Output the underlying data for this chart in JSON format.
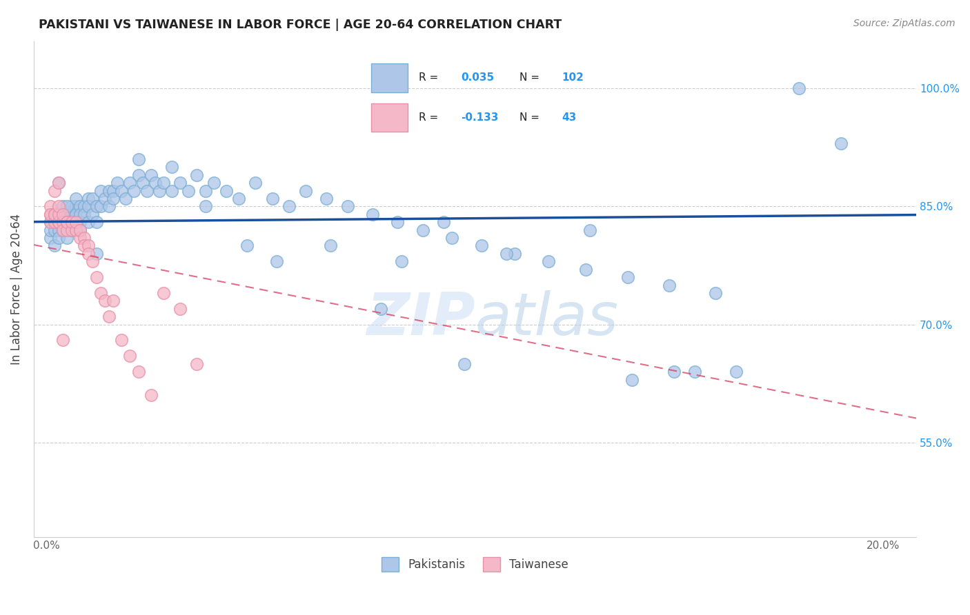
{
  "title": "PAKISTANI VS TAIWANESE IN LABOR FORCE | AGE 20-64 CORRELATION CHART",
  "source": "Source: ZipAtlas.com",
  "ylabel": "In Labor Force | Age 20-64",
  "xlim": [
    -0.003,
    0.208
  ],
  "ylim": [
    0.43,
    1.06
  ],
  "r_pakistani": 0.035,
  "n_pakistani": 102,
  "r_taiwanese": -0.133,
  "n_taiwanese": 43,
  "color_pakistani_fill": "#aec6e8",
  "color_pakistani_edge": "#7aaed4",
  "color_taiwanese_fill": "#f4b8c8",
  "color_taiwanese_edge": "#e890a8",
  "color_trendline_pakistani": "#1a4f9c",
  "color_trendline_taiwanese": "#d04060",
  "watermark_zip": "ZIP",
  "watermark_atlas": "atlas",
  "pakistani_x": [
    0.001,
    0.001,
    0.001,
    0.002,
    0.002,
    0.002,
    0.003,
    0.003,
    0.003,
    0.003,
    0.004,
    0.004,
    0.004,
    0.005,
    0.005,
    0.005,
    0.006,
    0.006,
    0.006,
    0.006,
    0.007,
    0.007,
    0.007,
    0.007,
    0.008,
    0.008,
    0.008,
    0.009,
    0.009,
    0.01,
    0.01,
    0.01,
    0.011,
    0.011,
    0.012,
    0.012,
    0.013,
    0.013,
    0.014,
    0.015,
    0.015,
    0.016,
    0.016,
    0.017,
    0.018,
    0.019,
    0.02,
    0.021,
    0.022,
    0.023,
    0.024,
    0.025,
    0.026,
    0.027,
    0.028,
    0.03,
    0.032,
    0.034,
    0.036,
    0.038,
    0.04,
    0.043,
    0.046,
    0.05,
    0.054,
    0.058,
    0.062,
    0.067,
    0.072,
    0.078,
    0.084,
    0.09,
    0.097,
    0.104,
    0.112,
    0.12,
    0.129,
    0.139,
    0.149,
    0.16,
    0.055,
    0.095,
    0.1,
    0.068,
    0.11,
    0.13,
    0.155,
    0.165,
    0.08,
    0.085,
    0.048,
    0.038,
    0.03,
    0.022,
    0.012,
    0.008,
    0.005,
    0.003,
    0.18,
    0.19,
    0.14,
    0.15
  ],
  "pakistani_y": [
    0.83,
    0.81,
    0.82,
    0.84,
    0.82,
    0.8,
    0.83,
    0.82,
    0.84,
    0.81,
    0.85,
    0.83,
    0.82,
    0.84,
    0.83,
    0.81,
    0.85,
    0.84,
    0.82,
    0.83,
    0.85,
    0.84,
    0.83,
    0.86,
    0.85,
    0.84,
    0.83,
    0.85,
    0.84,
    0.86,
    0.85,
    0.83,
    0.86,
    0.84,
    0.85,
    0.83,
    0.87,
    0.85,
    0.86,
    0.87,
    0.85,
    0.87,
    0.86,
    0.88,
    0.87,
    0.86,
    0.88,
    0.87,
    0.89,
    0.88,
    0.87,
    0.89,
    0.88,
    0.87,
    0.88,
    0.87,
    0.88,
    0.87,
    0.89,
    0.87,
    0.88,
    0.87,
    0.86,
    0.88,
    0.86,
    0.85,
    0.87,
    0.86,
    0.85,
    0.84,
    0.83,
    0.82,
    0.81,
    0.8,
    0.79,
    0.78,
    0.77,
    0.76,
    0.75,
    0.74,
    0.78,
    0.83,
    0.65,
    0.8,
    0.79,
    0.82,
    0.64,
    0.64,
    0.72,
    0.78,
    0.8,
    0.85,
    0.9,
    0.91,
    0.79,
    0.82,
    0.85,
    0.88,
    1.0,
    0.93,
    0.63,
    0.64
  ],
  "taiwanese_x": [
    0.001,
    0.001,
    0.001,
    0.001,
    0.002,
    0.002,
    0.002,
    0.003,
    0.003,
    0.003,
    0.003,
    0.004,
    0.004,
    0.004,
    0.005,
    0.005,
    0.005,
    0.006,
    0.006,
    0.007,
    0.007,
    0.008,
    0.008,
    0.009,
    0.009,
    0.01,
    0.01,
    0.011,
    0.012,
    0.013,
    0.014,
    0.015,
    0.016,
    0.018,
    0.02,
    0.022,
    0.025,
    0.028,
    0.032,
    0.036,
    0.002,
    0.003,
    0.004
  ],
  "taiwanese_y": [
    0.84,
    0.85,
    0.83,
    0.84,
    0.83,
    0.84,
    0.84,
    0.83,
    0.83,
    0.84,
    0.85,
    0.83,
    0.82,
    0.84,
    0.83,
    0.82,
    0.83,
    0.82,
    0.83,
    0.82,
    0.83,
    0.81,
    0.82,
    0.81,
    0.8,
    0.8,
    0.79,
    0.78,
    0.76,
    0.74,
    0.73,
    0.71,
    0.73,
    0.68,
    0.66,
    0.64,
    0.61,
    0.74,
    0.72,
    0.65,
    0.87,
    0.88,
    0.68
  ]
}
